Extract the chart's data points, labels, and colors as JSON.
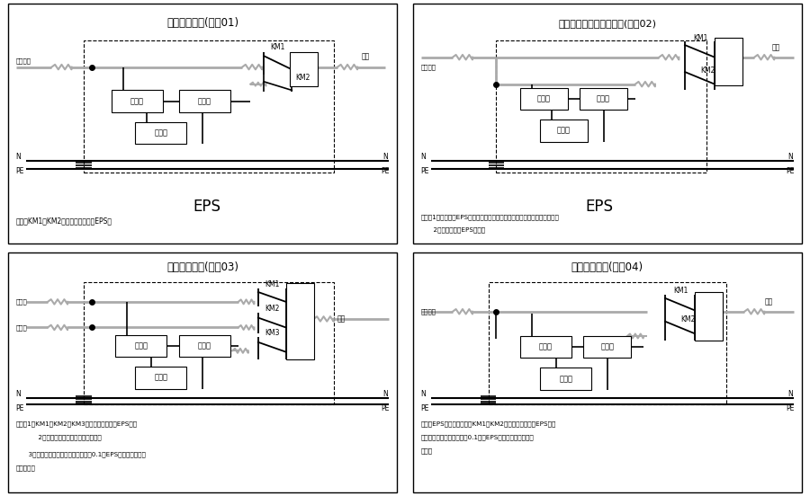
{
  "title01": "单电源原理图(编号01)",
  "title02": "做第二回路双回路原理图(编号02)",
  "title03": "双电源原理图(编号03)",
  "title04": "双电源原理图(编号04)",
  "note01": "说明：KM1、KM2为电气机械互锁在EPS内",
  "note02_1": "说明：1、此种情况EPS的逆变器在关机状态在无市电时立即开机逆变输出。",
  "note02_2": "      2、互投装置在EPS之外。",
  "note03_1": "说明：1、KM1、KM2、KM3为机械电气互锁在EPS内；",
  "note03_2": "      2、充电器可接在备用或常用电上；",
  "note03_3": "      3、无常用电时，备用电若投入大于0.1秒EPS先投入备用电来",
  "note03_4": "后再退出。",
  "note04_1": "说明：EPS相当于第三电源KM1、KM2为机械电气互锁在EPS内无",
  "note04_2": "常用点时备用电若投入大于0.1秒，EPS先投入备用电来后再",
  "note04_3": "退出。",
  "bg_color": "#ffffff",
  "eps_label": "EPS",
  "gray": "#aaaaaa",
  "black": "#000000"
}
